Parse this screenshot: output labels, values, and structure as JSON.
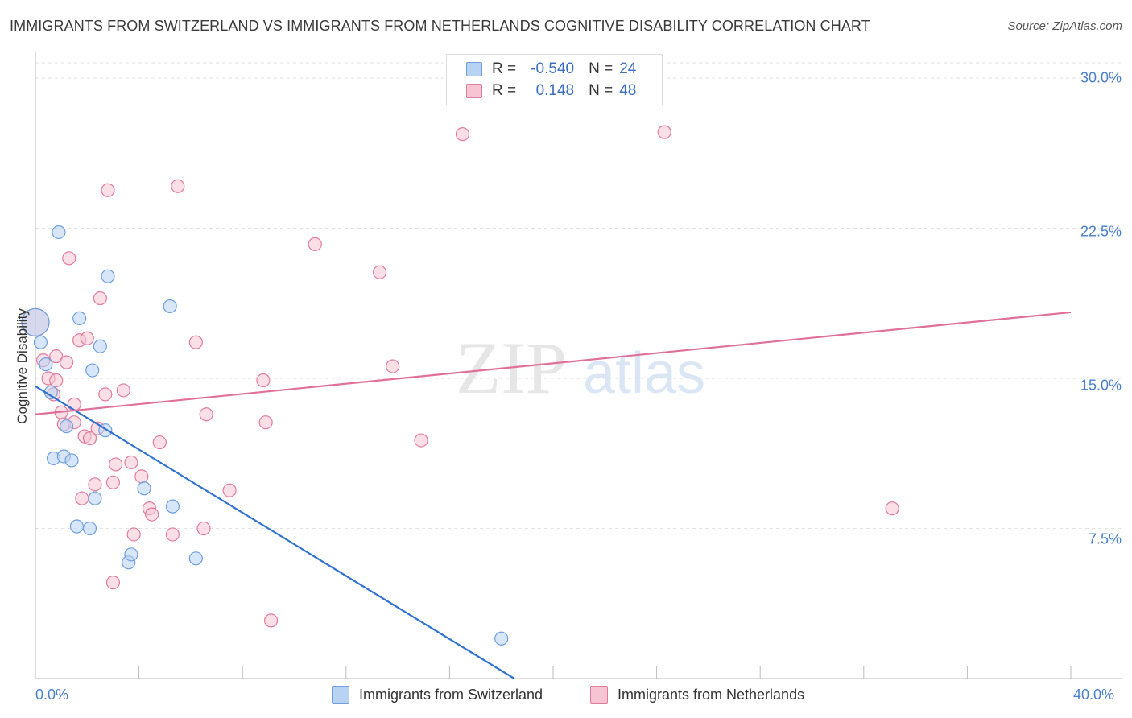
{
  "header": {
    "title": "IMMIGRANTS FROM SWITZERLAND VS IMMIGRANTS FROM NETHERLANDS COGNITIVE DISABILITY CORRELATION CHART",
    "source": "Source: ZipAtlas.com"
  },
  "legend": {
    "r_label": "R =",
    "n_label": "N =",
    "series1": {
      "r": "-0.540",
      "n": "24"
    },
    "series2": {
      "r": "0.148",
      "n": "48"
    }
  },
  "watermark": {
    "zip": "ZIP",
    "atlas": "atlas"
  },
  "chart_data": {
    "type": "scatter",
    "title": "IMMIGRANTS FROM SWITZERLAND VS IMMIGRANTS FROM NETHERLANDS COGNITIVE DISABILITY CORRELATION CHART",
    "xlabel": "",
    "ylabel": "Cognitive Disability",
    "xlim": [
      0,
      40
    ],
    "ylim": [
      0,
      31
    ],
    "x_tick_labels": [
      "0.0%",
      "40.0%"
    ],
    "y_ticks": [
      7.5,
      15.0,
      22.5,
      30.0
    ],
    "y_tick_labels": [
      "7.5%",
      "15.0%",
      "22.5%",
      "30.0%"
    ],
    "grid": true,
    "legend_position": "top-center",
    "series": [
      {
        "name": "Immigrants from Switzerland",
        "color": "#6f9fde",
        "fill": "#b8d2f4",
        "r": -0.54,
        "n": 24,
        "trendline": {
          "x": [
            0,
            18.5
          ],
          "y": [
            14.6,
            0
          ]
        },
        "points": [
          {
            "x": 0.0,
            "y": 17.8,
            "big": true
          },
          {
            "x": 0.2,
            "y": 16.8
          },
          {
            "x": 0.4,
            "y": 15.7
          },
          {
            "x": 0.6,
            "y": 14.3
          },
          {
            "x": 0.9,
            "y": 22.3
          },
          {
            "x": 1.2,
            "y": 12.6
          },
          {
            "x": 1.7,
            "y": 18.0
          },
          {
            "x": 2.8,
            "y": 20.1
          },
          {
            "x": 2.2,
            "y": 15.4
          },
          {
            "x": 2.5,
            "y": 16.6
          },
          {
            "x": 2.7,
            "y": 12.4
          },
          {
            "x": 0.7,
            "y": 11.0
          },
          {
            "x": 1.1,
            "y": 11.1
          },
          {
            "x": 1.4,
            "y": 10.9
          },
          {
            "x": 2.3,
            "y": 9.0
          },
          {
            "x": 1.6,
            "y": 7.6
          },
          {
            "x": 2.1,
            "y": 7.5
          },
          {
            "x": 4.2,
            "y": 9.5
          },
          {
            "x": 5.3,
            "y": 8.6
          },
          {
            "x": 5.2,
            "y": 18.6
          },
          {
            "x": 3.6,
            "y": 5.8
          },
          {
            "x": 3.7,
            "y": 6.2
          },
          {
            "x": 6.2,
            "y": 6.0
          },
          {
            "x": 18.0,
            "y": 2.0
          }
        ]
      },
      {
        "name": "Immigrants from Netherlands",
        "color": "#e07b9e",
        "fill": "#f7c4d4",
        "r": 0.148,
        "n": 48,
        "trendline": {
          "x": [
            0,
            40
          ],
          "y": [
            13.2,
            18.3
          ]
        },
        "points": [
          {
            "x": 0.0,
            "y": 17.8,
            "big": true
          },
          {
            "x": 0.3,
            "y": 15.9
          },
          {
            "x": 0.5,
            "y": 15.0
          },
          {
            "x": 0.7,
            "y": 14.2
          },
          {
            "x": 0.8,
            "y": 16.1
          },
          {
            "x": 0.8,
            "y": 14.9
          },
          {
            "x": 1.0,
            "y": 13.3
          },
          {
            "x": 1.1,
            "y": 12.7
          },
          {
            "x": 1.2,
            "y": 15.8
          },
          {
            "x": 1.5,
            "y": 13.7
          },
          {
            "x": 1.5,
            "y": 12.8
          },
          {
            "x": 1.3,
            "y": 21.0
          },
          {
            "x": 1.7,
            "y": 16.9
          },
          {
            "x": 2.0,
            "y": 17.0
          },
          {
            "x": 1.9,
            "y": 12.1
          },
          {
            "x": 2.1,
            "y": 12.0
          },
          {
            "x": 2.4,
            "y": 12.5
          },
          {
            "x": 2.5,
            "y": 19.0
          },
          {
            "x": 2.7,
            "y": 14.2
          },
          {
            "x": 2.8,
            "y": 24.4
          },
          {
            "x": 1.8,
            "y": 9.0
          },
          {
            "x": 2.3,
            "y": 9.7
          },
          {
            "x": 3.0,
            "y": 9.8
          },
          {
            "x": 3.1,
            "y": 10.7
          },
          {
            "x": 3.4,
            "y": 14.4
          },
          {
            "x": 3.7,
            "y": 10.8
          },
          {
            "x": 4.1,
            "y": 10.1
          },
          {
            "x": 3.8,
            "y": 7.2
          },
          {
            "x": 3.0,
            "y": 4.8
          },
          {
            "x": 4.4,
            "y": 8.5
          },
          {
            "x": 4.5,
            "y": 8.2
          },
          {
            "x": 4.8,
            "y": 11.8
          },
          {
            "x": 5.5,
            "y": 24.6
          },
          {
            "x": 5.3,
            "y": 7.2
          },
          {
            "x": 6.2,
            "y": 16.8
          },
          {
            "x": 6.6,
            "y": 13.2
          },
          {
            "x": 6.5,
            "y": 7.5
          },
          {
            "x": 7.5,
            "y": 9.4
          },
          {
            "x": 8.8,
            "y": 14.9
          },
          {
            "x": 8.9,
            "y": 12.8
          },
          {
            "x": 9.1,
            "y": 2.9
          },
          {
            "x": 10.8,
            "y": 21.7
          },
          {
            "x": 13.3,
            "y": 20.3
          },
          {
            "x": 14.9,
            "y": 11.9
          },
          {
            "x": 16.5,
            "y": 27.2
          },
          {
            "x": 24.3,
            "y": 27.3
          },
          {
            "x": 33.1,
            "y": 8.5
          },
          {
            "x": 13.8,
            "y": 15.6
          }
        ]
      }
    ]
  }
}
